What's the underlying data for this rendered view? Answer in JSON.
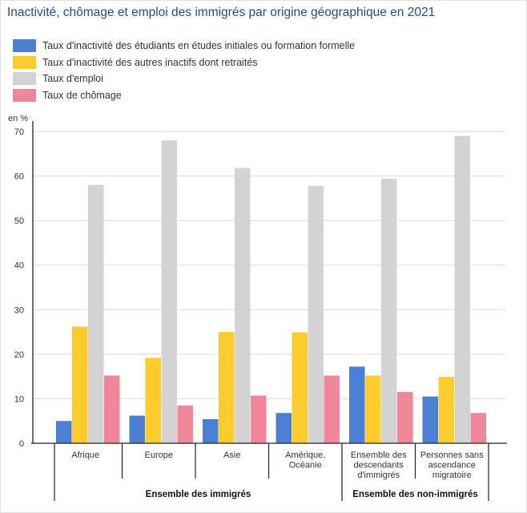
{
  "title": "Inactivité, chômage et emploi des immigrés par origine géographique en 2021",
  "chart_data": {
    "type": "bar",
    "unit_label": "en %",
    "ylim": [
      0,
      72
    ],
    "yticks": [
      0,
      10,
      20,
      30,
      40,
      50,
      60,
      70
    ],
    "grid": true,
    "legend_position": "top-left",
    "categories": [
      [
        "Afrique"
      ],
      [
        "Europe"
      ],
      [
        "Asie"
      ],
      [
        "Amérique,",
        "Océanie"
      ],
      [
        "Ensemble des",
        "descendants",
        "d'immigrés"
      ],
      [
        "Personnes sans",
        "ascendance",
        "migratoire"
      ]
    ],
    "groups": [
      {
        "label": "Ensemble des immigrés",
        "categories": [
          0,
          1,
          2,
          3
        ]
      },
      {
        "label": "Ensemble des non-immigrés",
        "categories": [
          4,
          5
        ]
      }
    ],
    "series": [
      {
        "name": "Taux d'inactivité des étudiants en études initiales ou formation formelle",
        "color": "#4a7fd4",
        "values": [
          5.0,
          6.2,
          5.4,
          6.8,
          17.2,
          10.5
        ]
      },
      {
        "name": "Taux d'inactivité des autres inactifs dont retraités",
        "color": "#fccc2e",
        "values": [
          26.2,
          19.2,
          25.0,
          24.9,
          15.2,
          14.9
        ]
      },
      {
        "name": "Taux d'emploi",
        "color": "#d3d3d3",
        "values": [
          58.0,
          68.0,
          61.8,
          57.8,
          59.4,
          69.0
        ]
      },
      {
        "name": "Taux de chômage",
        "color": "#ef869a",
        "values": [
          15.2,
          8.5,
          10.7,
          15.2,
          11.5,
          6.8
        ]
      }
    ]
  }
}
